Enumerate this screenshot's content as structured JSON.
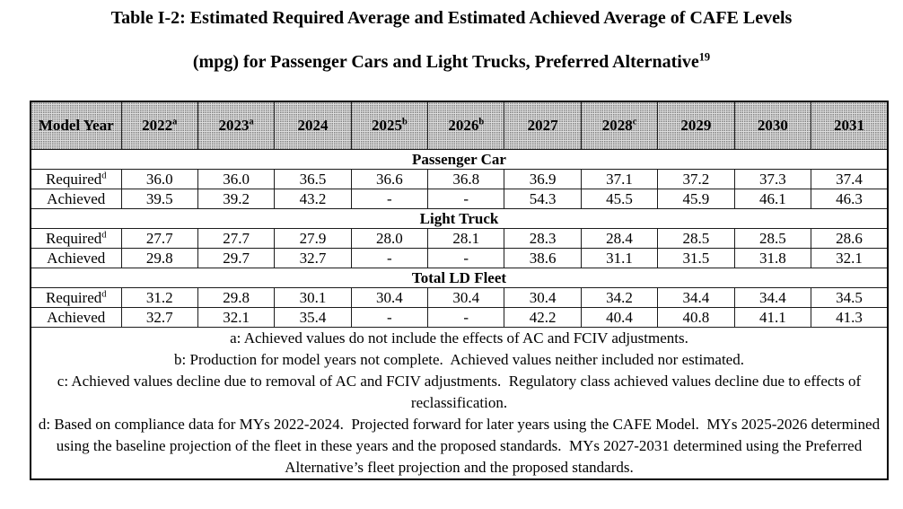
{
  "title": {
    "line1": "Table I-2: Estimated Required Average and Estimated Achieved Average of CAFE Levels",
    "line2": "(mpg) for Passenger Cars and Light Trucks, Preferred Alternative",
    "line2_sup": "19"
  },
  "table": {
    "header": {
      "row_label": "Model Year",
      "columns": [
        {
          "year": "2022",
          "sup": "a"
        },
        {
          "year": "2023",
          "sup": "a"
        },
        {
          "year": "2024",
          "sup": ""
        },
        {
          "year": "2025",
          "sup": "b"
        },
        {
          "year": "2026",
          "sup": "b"
        },
        {
          "year": "2027",
          "sup": ""
        },
        {
          "year": "2028",
          "sup": "c"
        },
        {
          "year": "2029",
          "sup": ""
        },
        {
          "year": "2030",
          "sup": ""
        },
        {
          "year": "2031",
          "sup": ""
        }
      ]
    },
    "sections": [
      {
        "name": "Passenger Car",
        "rows": [
          {
            "label": "Required",
            "label_sup": "d",
            "values": [
              "36.0",
              "36.0",
              "36.5",
              "36.6",
              "36.8",
              "36.9",
              "37.1",
              "37.2",
              "37.3",
              "37.4"
            ]
          },
          {
            "label": "Achieved",
            "label_sup": "",
            "values": [
              "39.5",
              "39.2",
              "43.2",
              "-",
              "-",
              "54.3",
              "45.5",
              "45.9",
              "46.1",
              "46.3"
            ]
          }
        ]
      },
      {
        "name": "Light Truck",
        "rows": [
          {
            "label": "Required",
            "label_sup": "d",
            "values": [
              "27.7",
              "27.7",
              "27.9",
              "28.0",
              "28.1",
              "28.3",
              "28.4",
              "28.5",
              "28.5",
              "28.6"
            ]
          },
          {
            "label": "Achieved",
            "label_sup": "",
            "values": [
              "29.8",
              "29.7",
              "32.7",
              "-",
              "-",
              "38.6",
              "31.1",
              "31.5",
              "31.8",
              "32.1"
            ]
          }
        ]
      },
      {
        "name": "Total LD Fleet",
        "rows": [
          {
            "label": "Required",
            "label_sup": "d",
            "values": [
              "31.2",
              "29.8",
              "30.1",
              "30.4",
              "30.4",
              "30.4",
              "34.2",
              "34.4",
              "34.4",
              "34.5"
            ]
          },
          {
            "label": "Achieved",
            "label_sup": "",
            "values": [
              "32.7",
              "32.1",
              "35.4",
              "-",
              "-",
              "42.2",
              "40.4",
              "40.8",
              "41.1",
              "41.3"
            ]
          }
        ]
      }
    ],
    "footnotes": [
      "a: Achieved values do not include the effects of AC and FCIV adjustments.",
      "b: Production for model years not complete.  Achieved values neither included nor estimated.",
      "c: Achieved values decline due to removal of AC and FCIV adjustments.  Regulatory class achieved values decline due to effects of reclassification.",
      "d: Based on compliance data for MYs 2022-2024.  Projected forward for later years using the CAFE Model.  MYs 2025-2026 determined using the baseline projection of the fleet in these years and the proposed standards.  MYs 2027-2031 determined using the Preferred Alternative’s fleet projection and the proposed standards."
    ]
  },
  "chart_data": {
    "type": "table",
    "title": "Table I-2: Estimated Required Average and Estimated Achieved Average of CAFE Levels (mpg) for Passenger Cars and Light Trucks, Preferred Alternative",
    "columns": [
      "Model Year",
      "2022",
      "2023",
      "2024",
      "2025",
      "2026",
      "2027",
      "2028",
      "2029",
      "2030",
      "2031"
    ],
    "series": [
      {
        "name": "Passenger Car Required",
        "values": [
          36.0,
          36.0,
          36.5,
          36.6,
          36.8,
          36.9,
          37.1,
          37.2,
          37.3,
          37.4
        ]
      },
      {
        "name": "Passenger Car Achieved",
        "values": [
          39.5,
          39.2,
          43.2,
          null,
          null,
          54.3,
          45.5,
          45.9,
          46.1,
          46.3
        ]
      },
      {
        "name": "Light Truck Required",
        "values": [
          27.7,
          27.7,
          27.9,
          28.0,
          28.1,
          28.3,
          28.4,
          28.5,
          28.5,
          28.6
        ]
      },
      {
        "name": "Light Truck Achieved",
        "values": [
          29.8,
          29.7,
          32.7,
          null,
          null,
          38.6,
          31.1,
          31.5,
          31.8,
          32.1
        ]
      },
      {
        "name": "Total LD Fleet Required",
        "values": [
          31.2,
          29.8,
          30.1,
          30.4,
          30.4,
          30.4,
          34.2,
          34.4,
          34.4,
          34.5
        ]
      },
      {
        "name": "Total LD Fleet Achieved",
        "values": [
          32.7,
          32.1,
          35.4,
          null,
          null,
          42.2,
          40.4,
          40.8,
          41.1,
          41.3
        ]
      }
    ]
  },
  "colors": {
    "header_bg": "#dedede",
    "border": "#1c1c1c",
    "text": "#000000"
  }
}
